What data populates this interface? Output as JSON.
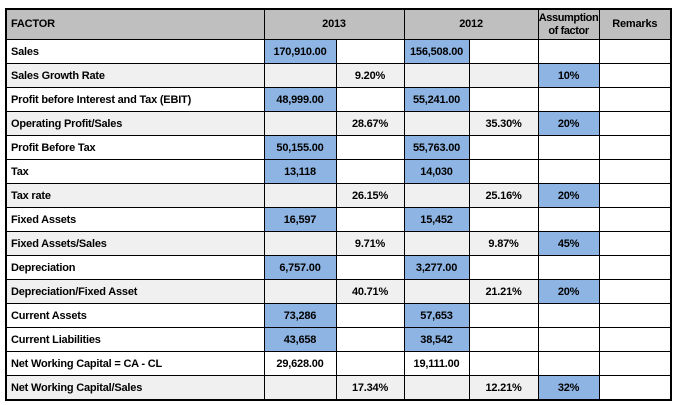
{
  "colors": {
    "header_bg": "#bfbfbf",
    "highlight_blue": "#8db4e2",
    "shaded_row": "#f0f0f0",
    "grid_border": "#000000",
    "page_bg": "#ffffff"
  },
  "table": {
    "header": {
      "factor": "FACTOR",
      "y2013": "2013",
      "y2012": "2012",
      "assumption": "Assumption of factor",
      "remarks": "Remarks"
    },
    "rows": [
      {
        "factor": "Sales",
        "shaded": false,
        "cells": [
          {
            "t": "170,910.00",
            "bg": "blue"
          },
          {
            "t": "",
            "bg": "white"
          },
          {
            "t": "156,508.00",
            "bg": "blue"
          },
          {
            "t": "",
            "bg": "white"
          },
          {
            "t": "",
            "bg": "white"
          },
          {
            "t": "",
            "bg": "white"
          }
        ]
      },
      {
        "factor": "Sales Growth Rate",
        "shaded": true,
        "cells": [
          {
            "t": "",
            "bg": "shade"
          },
          {
            "t": "9.20%",
            "bg": "shade"
          },
          {
            "t": "",
            "bg": "shade"
          },
          {
            "t": "",
            "bg": "shade"
          },
          {
            "t": "10%",
            "bg": "blue"
          },
          {
            "t": "",
            "bg": "white"
          }
        ]
      },
      {
        "factor": "Profit before Interest and Tax (EBIT)",
        "shaded": false,
        "cells": [
          {
            "t": "48,999.00",
            "bg": "blue"
          },
          {
            "t": "",
            "bg": "white"
          },
          {
            "t": "55,241.00",
            "bg": "blue"
          },
          {
            "t": "",
            "bg": "white"
          },
          {
            "t": "",
            "bg": "white"
          },
          {
            "t": "",
            "bg": "white"
          }
        ]
      },
      {
        "factor": "Operating Profit/Sales",
        "shaded": true,
        "cells": [
          {
            "t": "",
            "bg": "shade"
          },
          {
            "t": "28.67%",
            "bg": "shade"
          },
          {
            "t": "",
            "bg": "shade"
          },
          {
            "t": "35.30%",
            "bg": "shade"
          },
          {
            "t": "20%",
            "bg": "blue"
          },
          {
            "t": "",
            "bg": "white"
          }
        ]
      },
      {
        "factor": "Profit Before Tax",
        "shaded": false,
        "cells": [
          {
            "t": "50,155.00",
            "bg": "blue"
          },
          {
            "t": "",
            "bg": "white"
          },
          {
            "t": "55,763.00",
            "bg": "blue"
          },
          {
            "t": "",
            "bg": "white"
          },
          {
            "t": "",
            "bg": "white"
          },
          {
            "t": "",
            "bg": "white"
          }
        ]
      },
      {
        "factor": "Tax",
        "shaded": false,
        "cells": [
          {
            "t": "13,118",
            "bg": "blue"
          },
          {
            "t": "",
            "bg": "white"
          },
          {
            "t": "14,030",
            "bg": "blue"
          },
          {
            "t": "",
            "bg": "white"
          },
          {
            "t": "",
            "bg": "white"
          },
          {
            "t": "",
            "bg": "white"
          }
        ]
      },
      {
        "factor": "Tax rate",
        "shaded": true,
        "cells": [
          {
            "t": "",
            "bg": "shade"
          },
          {
            "t": "26.15%",
            "bg": "shade"
          },
          {
            "t": "",
            "bg": "shade"
          },
          {
            "t": "25.16%",
            "bg": "shade"
          },
          {
            "t": "20%",
            "bg": "blue"
          },
          {
            "t": "",
            "bg": "white"
          }
        ]
      },
      {
        "factor": "Fixed Assets",
        "shaded": false,
        "cells": [
          {
            "t": "16,597",
            "bg": "blue"
          },
          {
            "t": "",
            "bg": "white"
          },
          {
            "t": "15,452",
            "bg": "blue"
          },
          {
            "t": "",
            "bg": "white"
          },
          {
            "t": "",
            "bg": "white"
          },
          {
            "t": "",
            "bg": "white"
          }
        ]
      },
      {
        "factor": "Fixed Assets/Sales",
        "shaded": true,
        "cells": [
          {
            "t": "",
            "bg": "shade"
          },
          {
            "t": "9.71%",
            "bg": "shade"
          },
          {
            "t": "",
            "bg": "shade"
          },
          {
            "t": "9.87%",
            "bg": "shade"
          },
          {
            "t": "45%",
            "bg": "blue"
          },
          {
            "t": "",
            "bg": "white"
          }
        ]
      },
      {
        "factor": "Depreciation",
        "shaded": false,
        "cells": [
          {
            "t": "6,757.00",
            "bg": "blue"
          },
          {
            "t": "",
            "bg": "white"
          },
          {
            "t": "3,277.00",
            "bg": "blue"
          },
          {
            "t": "",
            "bg": "white"
          },
          {
            "t": "",
            "bg": "white"
          },
          {
            "t": "",
            "bg": "white"
          }
        ]
      },
      {
        "factor": "Depreciation/Fixed Asset",
        "shaded": true,
        "cells": [
          {
            "t": "",
            "bg": "shade"
          },
          {
            "t": "40.71%",
            "bg": "shade"
          },
          {
            "t": "",
            "bg": "shade"
          },
          {
            "t": "21.21%",
            "bg": "shade"
          },
          {
            "t": "20%",
            "bg": "blue"
          },
          {
            "t": "",
            "bg": "white"
          }
        ]
      },
      {
        "factor": "Current Assets",
        "shaded": false,
        "cells": [
          {
            "t": "73,286",
            "bg": "blue"
          },
          {
            "t": "",
            "bg": "white"
          },
          {
            "t": "57,653",
            "bg": "blue"
          },
          {
            "t": "",
            "bg": "white"
          },
          {
            "t": "",
            "bg": "white"
          },
          {
            "t": "",
            "bg": "white"
          }
        ]
      },
      {
        "factor": "Current Liabilities",
        "shaded": false,
        "cells": [
          {
            "t": "43,658",
            "bg": "blue"
          },
          {
            "t": "",
            "bg": "white"
          },
          {
            "t": "38,542",
            "bg": "blue"
          },
          {
            "t": "",
            "bg": "white"
          },
          {
            "t": "",
            "bg": "white"
          },
          {
            "t": "",
            "bg": "white"
          }
        ]
      },
      {
        "factor": "Net Working Capital = CA - CL",
        "shaded": false,
        "cells": [
          {
            "t": "29,628.00",
            "bg": "white"
          },
          {
            "t": "",
            "bg": "white"
          },
          {
            "t": "19,111.00",
            "bg": "white"
          },
          {
            "t": "",
            "bg": "white"
          },
          {
            "t": "",
            "bg": "white"
          },
          {
            "t": "",
            "bg": "white"
          }
        ]
      },
      {
        "factor": "Net Working Capital/Sales",
        "shaded": true,
        "cells": [
          {
            "t": "",
            "bg": "shade"
          },
          {
            "t": "17.34%",
            "bg": "shade"
          },
          {
            "t": "",
            "bg": "shade"
          },
          {
            "t": "12.21%",
            "bg": "shade"
          },
          {
            "t": "32%",
            "bg": "blue"
          },
          {
            "t": "",
            "bg": "white"
          }
        ]
      }
    ]
  }
}
